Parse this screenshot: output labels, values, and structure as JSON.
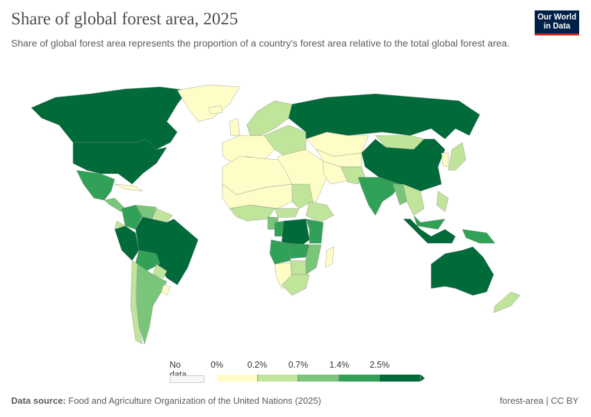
{
  "header": {
    "title": "Share of global forest area, 2025",
    "subtitle": "Share of global forest area represents the proportion of a country's forest area relative to the total global forest area.",
    "logo_text": "Our World in Data"
  },
  "legend": {
    "no_data": "No data",
    "ticks": [
      "0%",
      "0.2%",
      "0.7%",
      "1.4%",
      "2.5%"
    ],
    "colors": [
      "#fefdc8",
      "#c0e49a",
      "#79c57a",
      "#30a156",
      "#006a39"
    ],
    "no_data_color": "#eeeeee"
  },
  "map_data": {
    "Canada": 4,
    "United States": 4,
    "Greenland": 0,
    "Mexico": 3,
    "Central America": 2,
    "Caribbean": 0,
    "Brazil": 4,
    "Peru": 4,
    "Colombia": 3,
    "Venezuela": 2,
    "Guianas": 1,
    "Bolivia": 3,
    "Argentina": 2,
    "Chile": 1,
    "Paraguay": 1,
    "Uruguay": 0,
    "Ecuador": 1,
    "Russia": 4,
    "Scandinavia": 1,
    "Western Europe": 0,
    "Eastern Europe": 1,
    "Iceland": 0,
    "UK": 0,
    "North Africa": 0,
    "Sahel": 0,
    "West Africa": 1,
    "Central African Republic": 1,
    "Sudan": 1,
    "Ethiopia": 1,
    "Cameroon": 2,
    "Congo": 3,
    "DR Congo": 4,
    "Angola": 3,
    "Zambia": 3,
    "Tanzania": 3,
    "Mozambique": 2,
    "Southern Africa": 0,
    "Madagascar": 0,
    "Botswana": 1,
    "South Africa": 1,
    "Middle East": 0,
    "Kazakhstan": 0,
    "Central Asia": 0,
    "Iran": 0,
    "Afghanistan Pakistan": 1,
    "Mongolia": 1,
    "China": 4,
    "India": 3,
    "Myanmar": 2,
    "Southeast Asia": 1,
    "Japan": 1,
    "Korea": 0,
    "Indonesia": 4,
    "Papua New Guinea": 3,
    "Australia": 4,
    "New Zealand": 1,
    "Malaysia": 3,
    "Philippines": 1
  },
  "footer": {
    "source_label": "Data source:",
    "source": "Food and Agriculture Organization of the United Nations (2025)",
    "slug": "forest-area | CC BY"
  }
}
